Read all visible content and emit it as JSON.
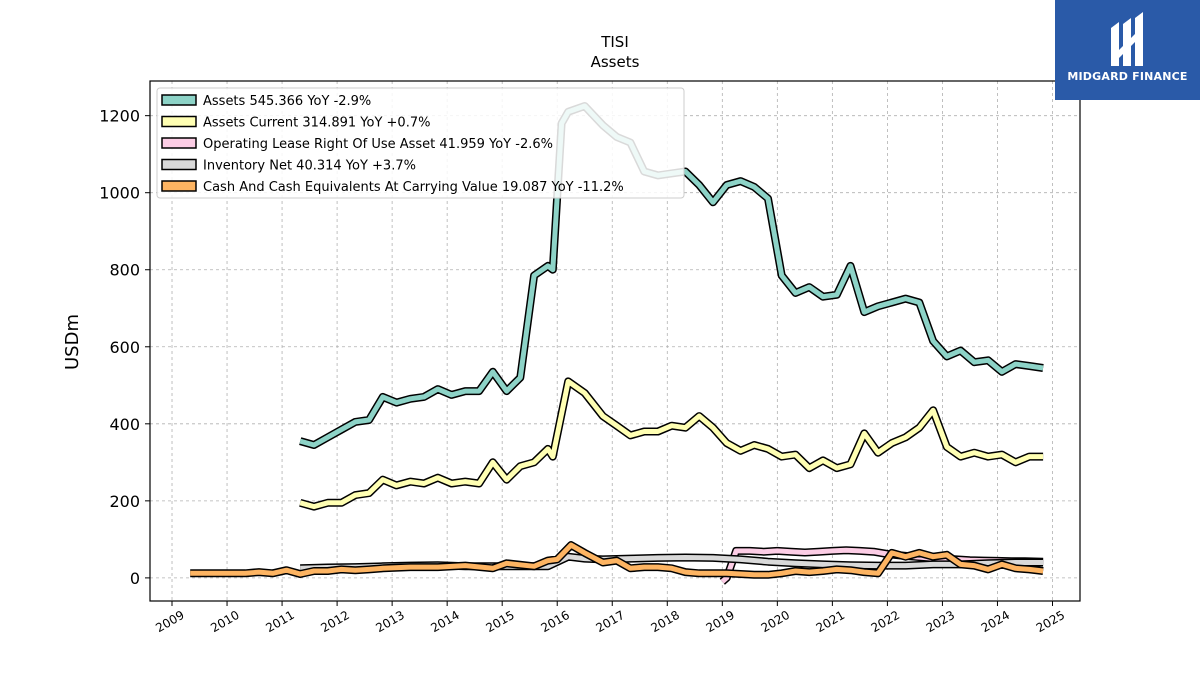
{
  "brand": {
    "name": "MIDGARD FINANCE",
    "bg_color": "#2a5aa8"
  },
  "chart_data": {
    "type": "line",
    "title": "TISI",
    "subtitle": "Assets",
    "xlabel": "",
    "ylabel": "USDm",
    "xlim": [
      2008.6,
      2025.5
    ],
    "ylim": [
      -60,
      1290
    ],
    "yticks": [
      0,
      200,
      400,
      600,
      800,
      1000,
      1200
    ],
    "xticks": [
      2009,
      2010,
      2011,
      2012,
      2013,
      2014,
      2015,
      2016,
      2017,
      2018,
      2019,
      2020,
      2021,
      2022,
      2023,
      2024,
      2025
    ],
    "grid": true,
    "legend_position": "top-left",
    "series": [
      {
        "name": "Assets",
        "legend": "Assets  545.366 YoY -2.9%",
        "color": "#8dd3c7",
        "x": [
          2011.33,
          2011.58,
          2011.83,
          2012.08,
          2012.33,
          2012.58,
          2012.83,
          2013.08,
          2013.33,
          2013.58,
          2013.83,
          2014.08,
          2014.33,
          2014.58,
          2014.83,
          2015.08,
          2015.33,
          2015.58,
          2015.83,
          2015.92,
          2016.08,
          2016.2,
          2016.5,
          2016.83,
          2017.08,
          2017.33,
          2017.58,
          2017.83,
          2018.08,
          2018.33,
          2018.58,
          2018.83,
          2019.08,
          2019.33,
          2019.58,
          2019.83,
          2020.08,
          2020.33,
          2020.58,
          2020.83,
          2021.08,
          2021.33,
          2021.58,
          2021.83,
          2022.08,
          2022.33,
          2022.58,
          2022.83,
          2023.08,
          2023.33,
          2023.58,
          2023.83,
          2024.08,
          2024.33,
          2024.58,
          2024.83
        ],
        "y": [
          355,
          345,
          365,
          385,
          405,
          410,
          470,
          455,
          465,
          470,
          490,
          475,
          485,
          485,
          535,
          485,
          520,
          785,
          810,
          800,
          1180,
          1210,
          1225,
          1175,
          1145,
          1130,
          1055,
          1045,
          1050,
          1055,
          1020,
          975,
          1020,
          1030,
          1015,
          985,
          785,
          740,
          755,
          730,
          735,
          810,
          690,
          705,
          715,
          725,
          715,
          615,
          575,
          590,
          560,
          565,
          535,
          555,
          550,
          545
        ]
      },
      {
        "name": "Assets Current",
        "legend": "Assets Current  314.891 YoY +0.7%",
        "color": "#ffffb3",
        "x": [
          2011.33,
          2011.58,
          2011.83,
          2012.08,
          2012.33,
          2012.58,
          2012.83,
          2013.08,
          2013.33,
          2013.58,
          2013.83,
          2014.08,
          2014.33,
          2014.58,
          2014.83,
          2015.08,
          2015.33,
          2015.58,
          2015.83,
          2015.92,
          2016.2,
          2016.5,
          2016.83,
          2017.08,
          2017.33,
          2017.58,
          2017.83,
          2018.08,
          2018.33,
          2018.58,
          2018.83,
          2019.08,
          2019.33,
          2019.58,
          2019.83,
          2020.08,
          2020.33,
          2020.58,
          2020.83,
          2021.08,
          2021.33,
          2021.58,
          2021.83,
          2022.08,
          2022.33,
          2022.58,
          2022.83,
          2023.08,
          2023.33,
          2023.58,
          2023.83,
          2024.08,
          2024.33,
          2024.58,
          2024.83
        ],
        "y": [
          195,
          185,
          195,
          195,
          215,
          220,
          255,
          240,
          250,
          245,
          260,
          245,
          250,
          245,
          300,
          255,
          290,
          300,
          335,
          315,
          510,
          480,
          420,
          395,
          370,
          380,
          380,
          395,
          390,
          420,
          390,
          350,
          330,
          345,
          335,
          315,
          320,
          285,
          305,
          285,
          295,
          375,
          325,
          350,
          365,
          390,
          435,
          340,
          315,
          325,
          315,
          320,
          300,
          315,
          315
        ]
      },
      {
        "name": "Operating Lease Right Of Use Asset",
        "legend": "Operating Lease Right Of Use Asset  41.959 YoY -2.6%",
        "color": "#fccde5",
        "x": [
          2019.0,
          2019.08,
          2019.25,
          2019.5,
          2019.75,
          2020.0,
          2020.25,
          2020.5,
          2020.75,
          2021.0,
          2021.25,
          2021.5,
          2021.75,
          2022.0,
          2022.25,
          2022.5,
          2022.75,
          2023.0,
          2023.25,
          2023.5,
          2023.75,
          2024.0,
          2024.25,
          2024.5,
          2024.83
        ],
        "y": [
          -10,
          0,
          70,
          70,
          68,
          70,
          68,
          66,
          68,
          70,
          72,
          70,
          68,
          62,
          58,
          55,
          52,
          50,
          48,
          46,
          45,
          44,
          43,
          43,
          42
        ]
      },
      {
        "name": "Inventory Net",
        "legend": "Inventory Net  40.314 YoY +3.7%",
        "color": "#d9d9d9",
        "x": [
          2011.33,
          2011.83,
          2012.33,
          2012.83,
          2013.33,
          2013.83,
          2014.33,
          2014.83,
          2015.33,
          2015.83,
          2016.2,
          2016.5,
          2016.83,
          2017.33,
          2017.83,
          2018.33,
          2018.83,
          2019.33,
          2019.83,
          2020.33,
          2020.83,
          2021.33,
          2021.83,
          2022.33,
          2022.83,
          2023.33,
          2023.83,
          2024.33,
          2024.83
        ],
        "y": [
          25,
          27,
          28,
          30,
          32,
          33,
          30,
          30,
          30,
          30,
          55,
          50,
          48,
          50,
          52,
          53,
          52,
          48,
          42,
          38,
          35,
          33,
          32,
          32,
          35,
          35,
          38,
          40,
          40
        ]
      },
      {
        "name": "Cash And Cash Equivalents At Carrying Value",
        "legend": "Cash And Cash Equivalents At Carrying Value  19.087 YoY -11.2%",
        "color": "#fdb462",
        "x": [
          2009.33,
          2009.83,
          2010.33,
          2010.58,
          2010.83,
          2011.08,
          2011.33,
          2011.58,
          2011.83,
          2012.08,
          2012.33,
          2012.58,
          2012.83,
          2013.33,
          2013.83,
          2014.33,
          2014.83,
          2015.08,
          2015.58,
          2015.83,
          2016.0,
          2016.25,
          2016.5,
          2016.83,
          2017.08,
          2017.33,
          2017.58,
          2017.83,
          2018.08,
          2018.33,
          2018.58,
          2018.83,
          2019.08,
          2019.33,
          2019.58,
          2019.83,
          2020.08,
          2020.33,
          2020.58,
          2020.83,
          2021.08,
          2021.33,
          2021.58,
          2021.83,
          2022.08,
          2022.33,
          2022.58,
          2022.83,
          2023.08,
          2023.33,
          2023.58,
          2023.83,
          2024.08,
          2024.33,
          2024.58,
          2024.83
        ],
        "y": [
          12,
          12,
          12,
          15,
          12,
          20,
          10,
          18,
          18,
          22,
          20,
          22,
          25,
          28,
          28,
          32,
          25,
          38,
          30,
          45,
          48,
          85,
          65,
          40,
          45,
          25,
          28,
          28,
          25,
          15,
          12,
          12,
          12,
          10,
          8,
          8,
          12,
          18,
          15,
          18,
          22,
          20,
          15,
          12,
          65,
          55,
          65,
          55,
          60,
          35,
          32,
          22,
          35,
          25,
          22,
          18
        ]
      }
    ]
  }
}
